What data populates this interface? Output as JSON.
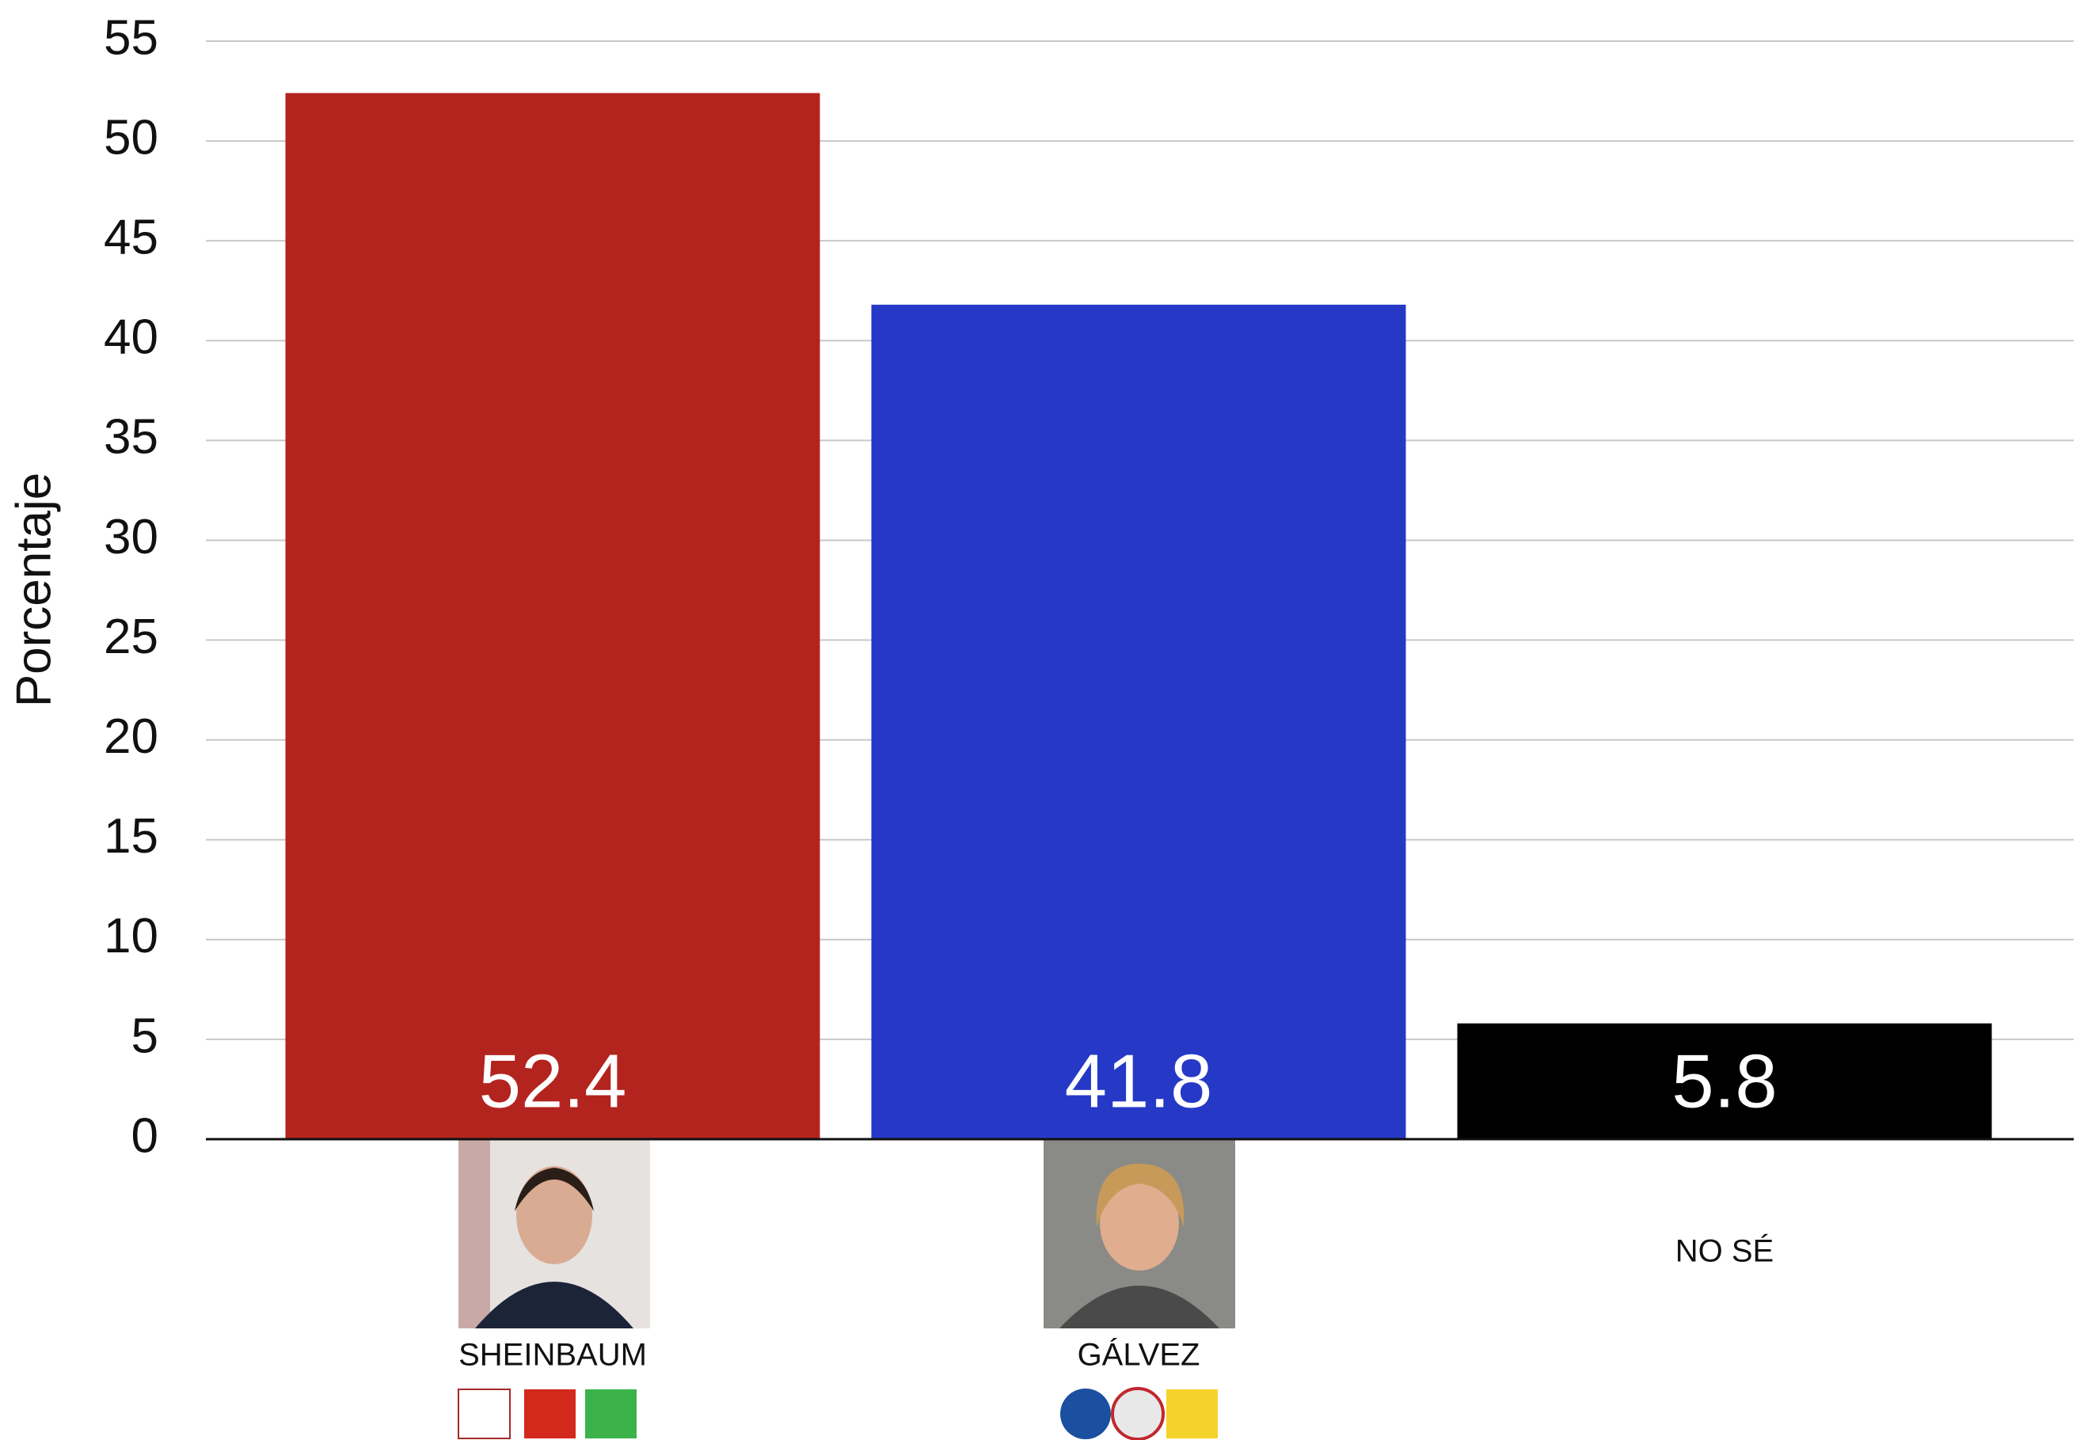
{
  "chart_data": {
    "type": "bar",
    "y_label": "Porcentaje",
    "categories": [
      "SHEINBAUM",
      "GÁLVEZ",
      "NO SÉ"
    ],
    "values": [
      52.4,
      41.8,
      5.8
    ],
    "colors": [
      "#b3241f",
      "#2539c6",
      "#000000"
    ],
    "ylim": [
      0,
      55
    ],
    "yticks": [
      0,
      5,
      10,
      15,
      20,
      25,
      30,
      35,
      40,
      45,
      50,
      55
    ],
    "grid": true
  }
}
